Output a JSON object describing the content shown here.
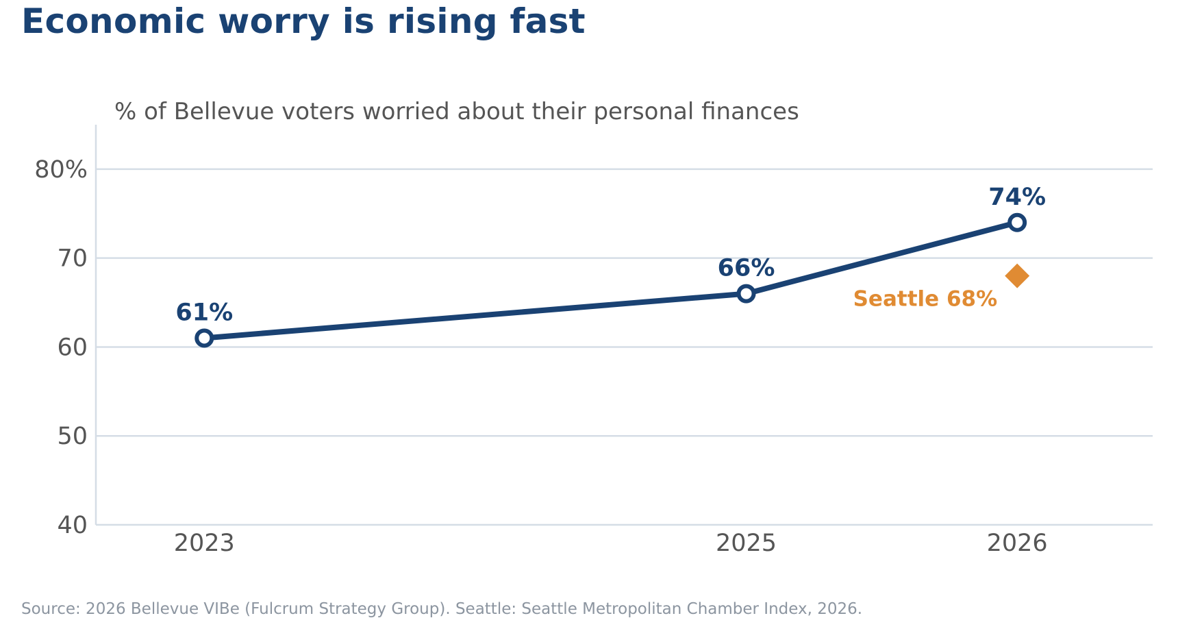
{
  "title": "Economic worry is rising fast",
  "source": "Source: 2026 Bellevue VIBe (Fulcrum Strategy Group). Seattle: Seattle Metropolitan Chamber Index, 2026.",
  "colors": {
    "title": "#1a4273",
    "line": "#1a4273",
    "seattle": "#e08b33",
    "grid": "#d5dde6",
    "axis_text": "#555555",
    "source": "#8c95a0"
  },
  "chart_data": {
    "type": "line",
    "title": "Economic worry is rising fast",
    "subtitle": "% of Bellevue voters worried about their personal finances",
    "x": [
      2023,
      2025,
      2026
    ],
    "x_tick_labels": [
      "2023",
      "2025",
      "2026"
    ],
    "xlim": [
      2022.6,
      2026.5
    ],
    "ylim": [
      40,
      85
    ],
    "y_ticks": [
      40,
      50,
      60,
      70,
      80
    ],
    "y_tick_labels": [
      "40",
      "50",
      "60",
      "70",
      "80%"
    ],
    "grid": "horizontal",
    "series": [
      {
        "values": [
          61,
          66,
          74
        ],
        "data_labels": [
          "61%",
          "66%",
          "74%"
        ],
        "marker": "open-circle"
      }
    ],
    "annotations": [
      {
        "x": 2026,
        "y": 68,
        "marker": "diamond",
        "label": "Seattle 68%"
      }
    ]
  }
}
